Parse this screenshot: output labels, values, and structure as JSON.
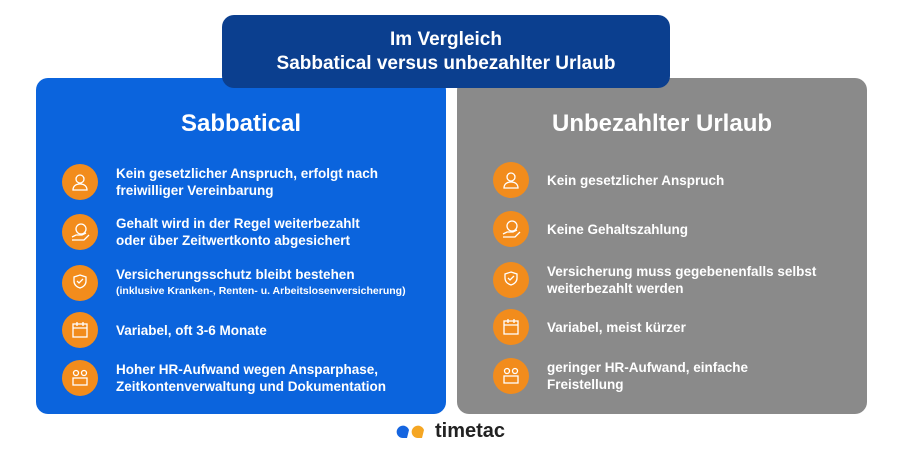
{
  "header": {
    "line1": "Im Vergleich",
    "line2": "Sabbatical versus unbezahlter Urlaub"
  },
  "colors": {
    "sabbatical": "#0b64dd",
    "urlaub": "#8a8a8a",
    "header": "#0b3f8f",
    "icon": "#f28c1c"
  },
  "sabbatical": {
    "title": "Sabbatical",
    "items": [
      {
        "icon": "person-icon",
        "text": "Kein gesetzlicher Anspruch, erfolgt nach freiwilliger Vereinbarung"
      },
      {
        "icon": "euro-hand-icon",
        "text": "Gehalt wird in der Regel weiterbezahlt oder über Zeitwertkonto abgesichert"
      },
      {
        "icon": "shield-hand-icon",
        "text": "Versicherungsschutz bleibt bestehen",
        "note": "(inklusive Kranken-, Renten- u. Arbeitslosenversicherung)"
      },
      {
        "icon": "calendar-icon",
        "text": "Variabel, oft 3-6 Monate"
      },
      {
        "icon": "office-people-icon",
        "text": "Hoher HR-Aufwand wegen Ansparphase, Zeitkontenverwaltung und Dokumentation"
      }
    ]
  },
  "urlaub": {
    "title": "Unbezahlter Urlaub",
    "items": [
      {
        "icon": "person-icon",
        "text": "Kein gesetzlicher Anspruch"
      },
      {
        "icon": "euro-hand-icon",
        "text": "Keine Gehaltszahlung"
      },
      {
        "icon": "shield-hand-icon",
        "text": "Versicherung muss gegebenenfalls selbst weiterbezahlt werden"
      },
      {
        "icon": "calendar-icon",
        "text": "Variabel, meist kürzer"
      },
      {
        "icon": "office-people-icon",
        "text": "geringer HR-Aufwand, einfache Freistellung"
      }
    ]
  },
  "logo": {
    "name": "timetac"
  }
}
